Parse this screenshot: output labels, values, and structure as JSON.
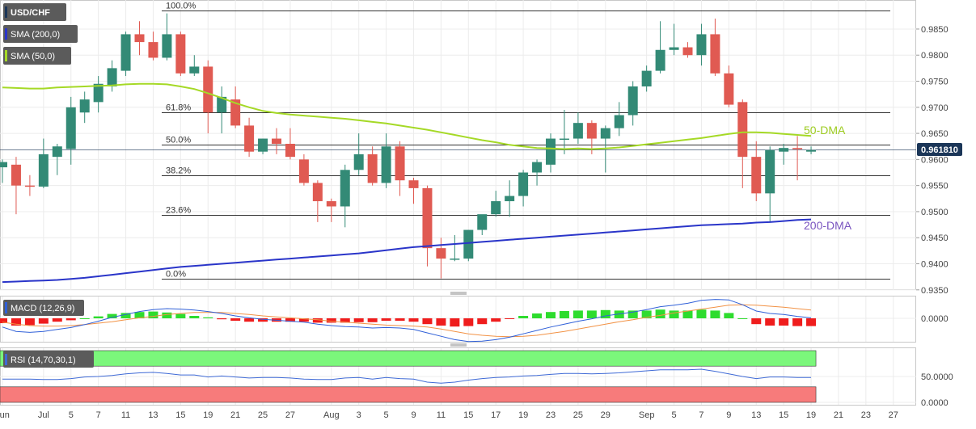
{
  "colors": {
    "bull": "#338a76",
    "bear": "#e05a52",
    "sma50": "#a5d926",
    "sma200": "#2a35c9",
    "macd_line": "#3060d8",
    "signal_line": "#f29245",
    "hist_pos": "#2edc2e",
    "hist_neg": "#ef1d1d",
    "rsi_line": "#3f6ad6",
    "rsi_over": "#7bf77b",
    "rsi_under": "#f77b7b",
    "price_tag": "#1b3658",
    "label_bg": "#5b5b5b"
  },
  "indicators": {
    "symbol": "USD/CHF",
    "sma200_label": "SMA (200,0)",
    "sma50_label": "SMA (50,0)",
    "macd_label": "MACD (12,26,9)",
    "rsi_label": "RSI (14,70,30,1)"
  },
  "annotations": {
    "dma50": "50-DMA",
    "dma200": "200-DMA"
  },
  "price_tag": "0.961810",
  "chart_data": [
    {
      "type": "candlestick",
      "title": "USD/CHF",
      "ylim": [
        0.935,
        0.9885
      ],
      "y_ticks": [
        "0.9350",
        "0.9400",
        "0.9450",
        "0.9500",
        "0.9550",
        "0.9600",
        "0.9650",
        "0.9700",
        "0.9750",
        "0.9800",
        "0.9850"
      ],
      "x_ticks": [
        {
          "label": "Jun",
          "i": 0
        },
        {
          "label": "Jul",
          "i": 3
        },
        {
          "label": "5",
          "i": 5
        },
        {
          "label": "7",
          "i": 7
        },
        {
          "label": "11",
          "i": 9
        },
        {
          "label": "13",
          "i": 11
        },
        {
          "label": "15",
          "i": 13
        },
        {
          "label": "19",
          "i": 15
        },
        {
          "label": "21",
          "i": 17
        },
        {
          "label": "25",
          "i": 19
        },
        {
          "label": "27",
          "i": 21
        },
        {
          "label": "Aug",
          "i": 24
        },
        {
          "label": "3",
          "i": 26
        },
        {
          "label": "5",
          "i": 28
        },
        {
          "label": "9",
          "i": 30
        },
        {
          "label": "11",
          "i": 32
        },
        {
          "label": "15",
          "i": 34
        },
        {
          "label": "17",
          "i": 36
        },
        {
          "label": "19",
          "i": 38
        },
        {
          "label": "23",
          "i": 40
        },
        {
          "label": "25",
          "i": 42
        },
        {
          "label": "29",
          "i": 44
        },
        {
          "label": "Sep",
          "i": 47
        },
        {
          "label": "5",
          "i": 49
        },
        {
          "label": "7",
          "i": 51
        },
        {
          "label": "9",
          "i": 53
        },
        {
          "label": "13",
          "i": 55
        },
        {
          "label": "15",
          "i": 57
        },
        {
          "label": "19",
          "i": 59
        },
        {
          "label": "21",
          "i": 61
        },
        {
          "label": "23",
          "i": 63
        },
        {
          "label": "27",
          "i": 65
        }
      ],
      "candles": [
        [
          0.9585,
          0.96,
          0.9555,
          0.9595
        ],
        [
          0.959,
          0.9605,
          0.9495,
          0.955
        ],
        [
          0.955,
          0.957,
          0.953,
          0.9548
        ],
        [
          0.9548,
          0.964,
          0.9545,
          0.961
        ],
        [
          0.9605,
          0.963,
          0.957,
          0.9625
        ],
        [
          0.962,
          0.972,
          0.959,
          0.97
        ],
        [
          0.969,
          0.973,
          0.967,
          0.9715
        ],
        [
          0.971,
          0.976,
          0.969,
          0.9745
        ],
        [
          0.974,
          0.979,
          0.973,
          0.9775
        ],
        [
          0.977,
          0.9845,
          0.976,
          0.984
        ],
        [
          0.984,
          0.9865,
          0.98,
          0.9825
        ],
        [
          0.9825,
          0.9845,
          0.979,
          0.9795
        ],
        [
          0.9795,
          0.988,
          0.979,
          0.984
        ],
        [
          0.984,
          0.9845,
          0.976,
          0.9765
        ],
        [
          0.9765,
          0.98,
          0.976,
          0.9778
        ],
        [
          0.9778,
          0.979,
          0.965,
          0.969
        ],
        [
          0.969,
          0.974,
          0.965,
          0.972
        ],
        [
          0.9715,
          0.974,
          0.966,
          0.9665
        ],
        [
          0.9665,
          0.968,
          0.9605,
          0.9615
        ],
        [
          0.9615,
          0.964,
          0.961,
          0.964
        ],
        [
          0.964,
          0.966,
          0.961,
          0.963
        ],
        [
          0.963,
          0.966,
          0.96,
          0.9605
        ],
        [
          0.96,
          0.961,
          0.955,
          0.9555
        ],
        [
          0.9555,
          0.956,
          0.948,
          0.952
        ],
        [
          0.952,
          0.9525,
          0.948,
          0.951
        ],
        [
          0.951,
          0.959,
          0.947,
          0.958
        ],
        [
          0.958,
          0.965,
          0.957,
          0.961
        ],
        [
          0.961,
          0.9625,
          0.955,
          0.9555
        ],
        [
          0.9555,
          0.965,
          0.9545,
          0.9625
        ],
        [
          0.9625,
          0.9635,
          0.953,
          0.956
        ],
        [
          0.956,
          0.9565,
          0.9515,
          0.9545
        ],
        [
          0.9545,
          0.955,
          0.9395,
          0.943
        ],
        [
          0.943,
          0.945,
          0.9372,
          0.941
        ],
        [
          0.941,
          0.9455,
          0.9405,
          0.941
        ],
        [
          0.941,
          0.9465,
          0.9405,
          0.9465
        ],
        [
          0.9465,
          0.949,
          0.9455,
          0.9495
        ],
        [
          0.9495,
          0.954,
          0.949,
          0.952
        ],
        [
          0.952,
          0.956,
          0.949,
          0.953
        ],
        [
          0.953,
          0.958,
          0.951,
          0.9575
        ],
        [
          0.9575,
          0.96,
          0.955,
          0.9595
        ],
        [
          0.959,
          0.965,
          0.9575,
          0.964
        ],
        [
          0.964,
          0.9695,
          0.961,
          0.964
        ],
        [
          0.964,
          0.969,
          0.963,
          0.967
        ],
        [
          0.967,
          0.9675,
          0.961,
          0.964
        ],
        [
          0.964,
          0.9665,
          0.9575,
          0.966
        ],
        [
          0.966,
          0.971,
          0.9645,
          0.9685
        ],
        [
          0.9685,
          0.975,
          0.9665,
          0.974
        ],
        [
          0.974,
          0.978,
          0.973,
          0.977
        ],
        [
          0.977,
          0.9865,
          0.9765,
          0.981
        ],
        [
          0.981,
          0.986,
          0.98,
          0.9815
        ],
        [
          0.9815,
          0.9825,
          0.9795,
          0.98
        ],
        [
          0.98,
          0.986,
          0.978,
          0.984
        ],
        [
          0.984,
          0.987,
          0.976,
          0.9765
        ],
        [
          0.9765,
          0.978,
          0.97,
          0.9705
        ],
        [
          0.971,
          0.9715,
          0.9545,
          0.9605
        ],
        [
          0.9605,
          0.9635,
          0.952,
          0.9535
        ],
        [
          0.9535,
          0.9625,
          0.948,
          0.9618
        ],
        [
          0.9615,
          0.963,
          0.959,
          0.9622
        ],
        [
          0.9622,
          0.9645,
          0.956,
          0.962
        ],
        [
          0.9615,
          0.9625,
          0.961,
          0.9618
        ]
      ],
      "sma50": [
        0.9738,
        0.9737,
        0.9736,
        0.9736,
        0.9738,
        0.9739,
        0.974,
        0.9741,
        0.9742,
        0.9744,
        0.9745,
        0.9745,
        0.9744,
        0.974,
        0.9735,
        0.9727,
        0.9718,
        0.9708,
        0.97,
        0.9693,
        0.9689,
        0.9686,
        0.9684,
        0.9682,
        0.968,
        0.9678,
        0.9675,
        0.9672,
        0.9669,
        0.9665,
        0.9661,
        0.9657,
        0.9652,
        0.9647,
        0.9642,
        0.9637,
        0.9633,
        0.9628,
        0.9625,
        0.9622,
        0.9621,
        0.962,
        0.9621,
        0.962,
        0.9621,
        0.9623,
        0.9626,
        0.9629,
        0.9632,
        0.9635,
        0.9638,
        0.9641,
        0.9645,
        0.9649,
        0.9652,
        0.9652,
        0.9651,
        0.9649,
        0.9647,
        0.9645
      ],
      "sma200": [
        0.9365,
        0.9366,
        0.9367,
        0.9368,
        0.9369,
        0.9371,
        0.9373,
        0.9376,
        0.9379,
        0.9382,
        0.9385,
        0.9388,
        0.9391,
        0.9394,
        0.9396,
        0.9398,
        0.94,
        0.9402,
        0.9404,
        0.9406,
        0.9408,
        0.941,
        0.9412,
        0.9414,
        0.9416,
        0.9418,
        0.942,
        0.9423,
        0.9426,
        0.9429,
        0.9432,
        0.9434,
        0.9436,
        0.9438,
        0.944,
        0.9442,
        0.9444,
        0.9446,
        0.9448,
        0.945,
        0.9452,
        0.9454,
        0.9456,
        0.9458,
        0.946,
        0.9462,
        0.9464,
        0.9466,
        0.9468,
        0.947,
        0.9472,
        0.9474,
        0.9475,
        0.9476,
        0.9477,
        0.9479,
        0.948,
        0.9482,
        0.9484,
        0.9485
      ],
      "fibonacci": [
        {
          "label": "100.0%",
          "price": 0.9885
        },
        {
          "label": "61.8%",
          "price": 0.969
        },
        {
          "label": "50.0%",
          "price": 0.9629
        },
        {
          "label": "38.2%",
          "price": 0.9569
        },
        {
          "label": "23.6%",
          "price": 0.9494
        },
        {
          "label": "0.0%",
          "price": 0.9372
        }
      ],
      "last_price": 0.96181
    },
    {
      "type": "macd",
      "title": "MACD (12,26,9)",
      "y_ticks": [
        "0.0000"
      ],
      "macd": [
        -0.0018,
        -0.0027,
        -0.0029,
        -0.0027,
        -0.0023,
        -0.0019,
        -0.0013,
        -0.0006,
        0.0002,
        0.0008,
        0.0014,
        0.0018,
        0.002,
        0.0019,
        0.0017,
        0.0014,
        0.001,
        0.0005,
        0.0001,
        -0.0002,
        -0.0004,
        -0.0006,
        -0.0008,
        -0.0012,
        -0.0015,
        -0.0017,
        -0.0018,
        -0.002,
        -0.0019,
        -0.002,
        -0.0023,
        -0.003,
        -0.0037,
        -0.0044,
        -0.0048,
        -0.0047,
        -0.0044,
        -0.0039,
        -0.0032,
        -0.0025,
        -0.0018,
        -0.0012,
        -0.0006,
        -0.0001,
        0.0005,
        0.0009,
        0.0013,
        0.0018,
        0.0024,
        0.0027,
        0.0031,
        0.0037,
        0.0039,
        0.0038,
        0.0028,
        0.0015,
        0.001,
        0.0008,
        0.0004,
        0.0001
      ],
      "signal": [
        -0.0008,
        -0.0012,
        -0.0015,
        -0.0016,
        -0.0016,
        -0.0015,
        -0.0013,
        -0.001,
        -0.0007,
        -0.0003,
        0.0001,
        0.0004,
        0.0008,
        0.001,
        0.0012,
        0.0012,
        0.0012,
        0.001,
        0.0008,
        0.0005,
        0.0003,
        0.0001,
        -0.0001,
        -0.0003,
        -0.0006,
        -0.0008,
        -0.001,
        -0.0012,
        -0.0014,
        -0.0015,
        -0.0016,
        -0.0018,
        -0.0022,
        -0.0027,
        -0.0032,
        -0.0035,
        -0.0037,
        -0.0038,
        -0.0037,
        -0.0035,
        -0.0031,
        -0.0027,
        -0.0022,
        -0.0017,
        -0.0012,
        -0.0007,
        -0.0003,
        0.0002,
        0.0006,
        0.0011,
        0.0015,
        0.0019,
        0.0023,
        0.0027,
        0.0028,
        0.0027,
        0.0025,
        0.0023,
        0.002,
        0.0017
      ],
      "histogram": [
        -0.001,
        -0.0015,
        -0.0014,
        -0.0011,
        -0.0007,
        -0.0004,
        0.0,
        0.0004,
        0.0009,
        0.0011,
        0.0013,
        0.0014,
        0.0012,
        0.0009,
        0.0005,
        0.0002,
        -0.0002,
        -0.0005,
        -0.0007,
        -0.0007,
        -0.0007,
        -0.0007,
        -0.0007,
        -0.0009,
        -0.0009,
        -0.0009,
        -0.0008,
        -0.0008,
        -0.0005,
        -0.0005,
        -0.0007,
        -0.0012,
        -0.0015,
        -0.0017,
        -0.0016,
        -0.0012,
        -0.0007,
        -0.0001,
        0.0005,
        0.001,
        0.0013,
        0.0015,
        0.0016,
        0.0016,
        0.0017,
        0.0016,
        0.0016,
        0.0016,
        0.0018,
        0.0016,
        0.0016,
        0.0018,
        0.0016,
        0.0011,
        0.0,
        -0.0012,
        -0.0015,
        -0.0015,
        -0.0016,
        -0.0016
      ]
    },
    {
      "type": "rsi",
      "title": "RSI (14,70,30,1)",
      "y_ticks": [
        "50.0000",
        "0.0000"
      ],
      "ylim": [
        0,
        100
      ],
      "overbought": 70,
      "oversold": 30,
      "values": [
        45,
        45,
        45,
        44,
        44,
        46,
        49,
        50,
        52,
        55,
        57,
        58,
        56,
        53,
        53,
        49,
        51,
        49,
        47,
        48,
        48,
        47,
        45,
        44,
        44,
        47,
        48,
        45,
        48,
        46,
        45,
        39,
        37,
        39,
        43,
        46,
        48,
        49,
        51,
        52,
        54,
        56,
        56,
        55,
        56,
        57,
        59,
        61,
        63,
        63,
        63,
        64,
        60,
        55,
        50,
        46,
        49,
        49,
        48,
        48
      ]
    }
  ]
}
